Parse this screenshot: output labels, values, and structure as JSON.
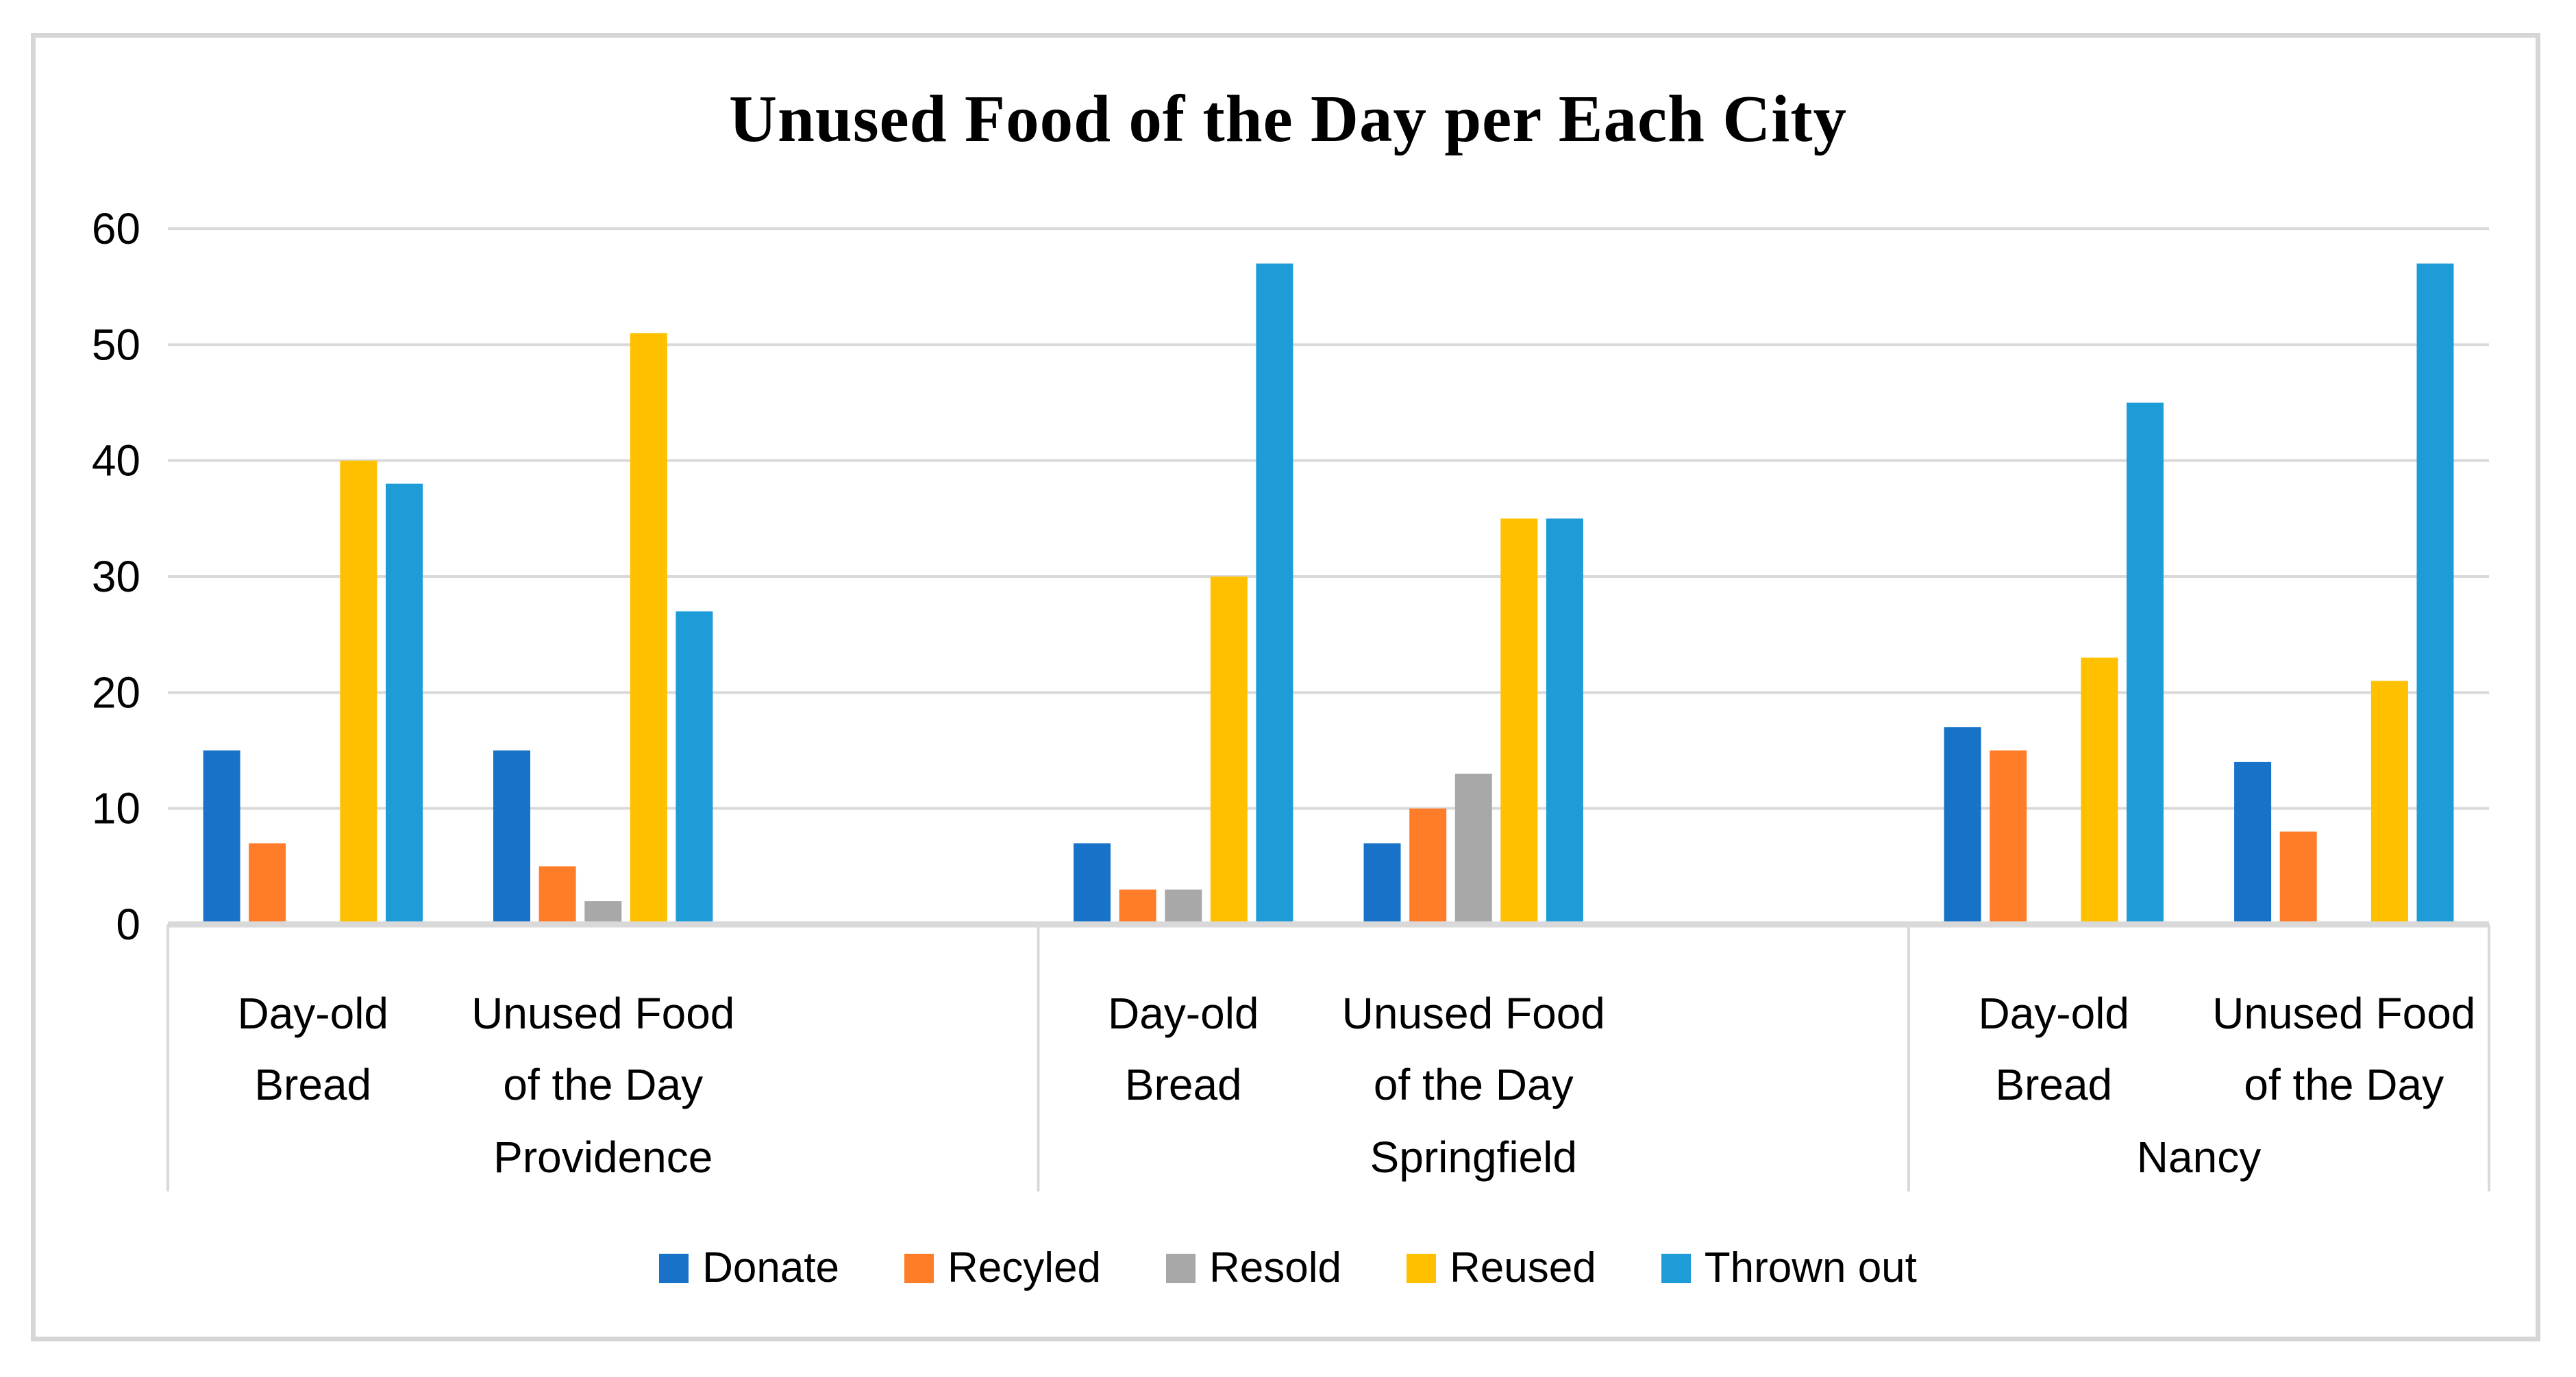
{
  "chart_data": {
    "type": "bar",
    "title": "Unused Food of the Day per Each City",
    "y_axis": {
      "min": 0,
      "max": 60,
      "tick_step": 10,
      "ticks": [
        0,
        10,
        20,
        30,
        40,
        50,
        60
      ]
    },
    "x_axis": {
      "cities": [
        {
          "name": "Providence",
          "categories": [
            "Day-old Bread",
            "Unused Food of the Day"
          ]
        },
        {
          "name": "Springfield",
          "categories": [
            "Day-old Bread",
            "Unused Food of the Day"
          ]
        },
        {
          "name": "Nancy",
          "categories": [
            "Day-old Bread",
            "Unused Food of the Day"
          ]
        }
      ],
      "category_line_wrap": {
        "Day-old Bread": [
          "Day-old",
          "Bread"
        ],
        "Unused Food of the Day": [
          "Unused Food",
          "of the Day"
        ]
      }
    },
    "values_order": [
      "Providence / Day-old Bread",
      "Providence / Unused Food of the Day",
      "Springfield / Day-old Bread",
      "Springfield / Unused Food of the Day",
      "Nancy / Day-old Bread",
      "Nancy / Unused Food of the Day"
    ],
    "series": [
      {
        "name": "Donate",
        "color": "#1772C8",
        "values": [
          15,
          15,
          7,
          7,
          17,
          14
        ]
      },
      {
        "name": "Recyled",
        "color": "#FF7D28",
        "values": [
          7,
          5,
          3,
          10,
          15,
          8
        ]
      },
      {
        "name": "Resold",
        "color": "#A8A8A8",
        "values": [
          0,
          2,
          3,
          13,
          0,
          0
        ]
      },
      {
        "name": "Reused",
        "color": "#FFC000",
        "values": [
          40,
          51,
          30,
          35,
          23,
          21
        ]
      },
      {
        "name": "Thrown out",
        "color": "#1E9CD8",
        "values": [
          38,
          27,
          57,
          35,
          45,
          57
        ]
      }
    ],
    "legend": {
      "position": "bottom",
      "items": [
        "Donate",
        "Recyled",
        "Resold",
        "Reused",
        "Thrown out"
      ]
    },
    "grid": true,
    "gridline_color": "#D9D9D9",
    "axis_line_color": "#D9D9D9"
  }
}
